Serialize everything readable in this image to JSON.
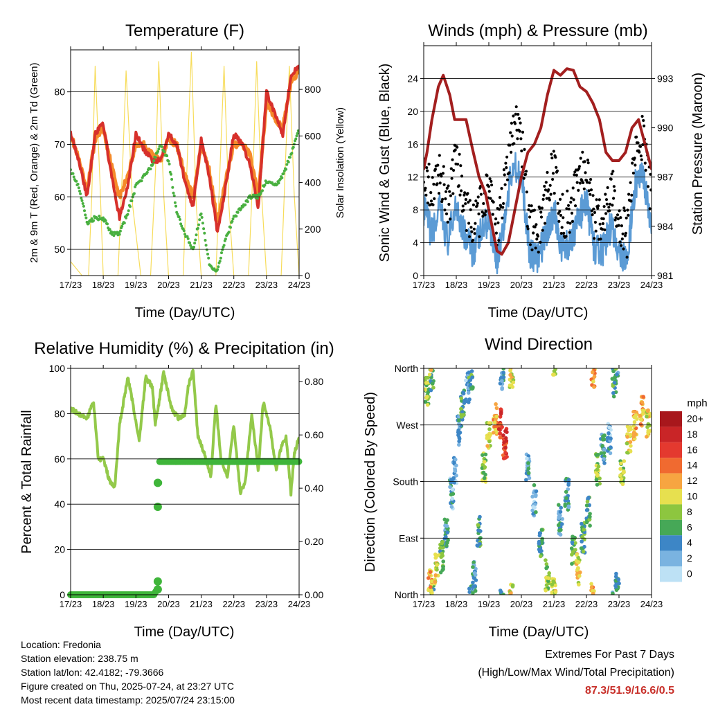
{
  "colors": {
    "temp_2m": "#d7302b",
    "temp_9m": "#f58a2a",
    "dewpoint": "#49b040",
    "insolation": "#f7dc5a",
    "wind": "#5b9bd5",
    "gust": "#000000",
    "pressure": "#a31f1f",
    "rh": "#93c94a",
    "precip": "#3fb53a",
    "grid": "#000000"
  },
  "x_ticks": [
    "17/23",
    "18/23",
    "19/23",
    "20/23",
    "21/23",
    "22/23",
    "23/23",
    "24/23"
  ],
  "info": {
    "location": "Location: Fredonia",
    "elevation": "Station elevation: 238.75 m",
    "latlon": "Station lat/lon: 42.4182; -79.3666",
    "created": "Figure created on Thu, 2025-07-24, at 23:27 UTC",
    "recent": "Most recent data timestamp: 2025/07/24 23:15:00"
  },
  "extremes": {
    "title": "Extremes For Past 7 Days",
    "subtitle": "(High/Low/Max Wind/Total Precipitation)",
    "values": "87.3/51.9/16.6/0.5"
  },
  "chart_data": [
    {
      "type": "line",
      "title": "Temperature (F)",
      "xlabel": "Time (Day/UTC)",
      "ylabel": "2m & 9m T (Red, Orange) & 2m Td (Green)",
      "y2label": "Solar Insolation (Yellow)",
      "xlim": [
        0,
        7
      ],
      "ylim": [
        45,
        88
      ],
      "y_ticks": [
        50,
        60,
        70,
        80
      ],
      "y2lim": [
        0,
        970
      ],
      "y2_ticks": [
        0,
        200,
        400,
        600,
        800
      ],
      "x": [
        0,
        0.25,
        0.5,
        0.75,
        1,
        1.25,
        1.5,
        1.75,
        2,
        2.25,
        2.5,
        2.75,
        3,
        3.25,
        3.5,
        3.75,
        4,
        4.25,
        4.5,
        4.75,
        5,
        5.25,
        5.5,
        5.75,
        6,
        6.25,
        6.5,
        6.75,
        7
      ],
      "series": [
        {
          "name": "2m T",
          "values": [
            72,
            67,
            60,
            72,
            74,
            64,
            56,
            62,
            72,
            69,
            67,
            67,
            72,
            70,
            63,
            58,
            71,
            64,
            53,
            62,
            72,
            70,
            66,
            58,
            80,
            76,
            72,
            83,
            85
          ]
        },
        {
          "name": "9m T",
          "values": [
            72,
            67,
            61,
            71,
            73,
            66,
            60,
            64,
            70,
            70,
            68,
            67,
            71,
            70,
            64,
            60,
            70,
            65,
            55,
            63,
            70,
            70,
            68,
            60,
            78,
            75,
            73,
            82,
            84
          ]
        },
        {
          "name": "2m Td",
          "values": [
            65,
            62,
            55,
            56,
            56,
            53,
            53,
            57,
            62,
            64,
            66,
            70,
            67,
            57,
            53,
            50,
            57,
            47,
            46,
            52,
            56,
            58,
            60,
            60,
            63,
            62,
            64,
            68,
            73
          ]
        },
        {
          "name": "Solar Insolation",
          "x": [
            0,
            0.35,
            0.55,
            0.65,
            0.75,
            0.9,
            1.0,
            1.2,
            1.45,
            1.6,
            1.7,
            1.9,
            2.15,
            2.45,
            2.6,
            2.7,
            2.85,
            3.0,
            3.2,
            3.45,
            3.6,
            3.7,
            3.85,
            4.0,
            4.2,
            4.45,
            4.6,
            4.7,
            4.85,
            5.0,
            5.2,
            5.45,
            5.6,
            5.7,
            5.85,
            6.0,
            6.2,
            6.45,
            6.6,
            6.7,
            6.85,
            7.0
          ],
          "values": [
            60,
            0,
            0,
            350,
            900,
            400,
            0,
            0,
            0,
            500,
            880,
            300,
            0,
            0,
            450,
            920,
            350,
            0,
            0,
            0,
            600,
            960,
            300,
            0,
            0,
            0,
            550,
            900,
            300,
            0,
            0,
            0,
            500,
            920,
            350,
            0,
            0,
            0,
            550,
            900,
            350,
            0
          ]
        }
      ]
    },
    {
      "type": "scatter",
      "title": "Winds (mph) & Pressure (mb)",
      "xlabel": "Time (Day/UTC)",
      "ylabel": "Sonic Wind & Gust (Blue, Black)",
      "y2label": "Station Pressure (Maroon)",
      "xlim": [
        0,
        7
      ],
      "ylim": [
        0,
        28
      ],
      "y_ticks": [
        0,
        4,
        8,
        12,
        16,
        20,
        24
      ],
      "y2lim": [
        981,
        995
      ],
      "y2_ticks": [
        981,
        984,
        987,
        990,
        993
      ],
      "series": [
        {
          "name": "Station Pressure",
          "x": [
            0,
            0.1,
            0.25,
            0.45,
            0.6,
            0.8,
            0.95,
            1.1,
            1.3,
            1.5,
            1.7,
            1.9,
            2.1,
            2.25,
            2.4,
            2.6,
            2.8,
            3.0,
            3.2,
            3.4,
            3.6,
            3.8,
            4.0,
            4.2,
            4.4,
            4.6,
            4.8,
            5.0,
            5.2,
            5.4,
            5.6,
            5.8,
            6.0,
            6.2,
            6.4,
            6.6,
            6.8,
            7.0
          ],
          "values": [
            987.5,
            988.5,
            990.5,
            992.5,
            993.2,
            992,
            990.5,
            990.5,
            990.5,
            988.7,
            987,
            986,
            984,
            982.5,
            982.3,
            983,
            985,
            987,
            988.5,
            989,
            990,
            992,
            993.5,
            993.2,
            993.6,
            993.5,
            992.5,
            992.2,
            991.5,
            990.5,
            988.5,
            988,
            988,
            988.5,
            990,
            990.5,
            989,
            987.5
          ]
        },
        {
          "name": "Sonic Wind",
          "x": [
            0,
            0.25,
            0.5,
            0.75,
            1,
            1.25,
            1.5,
            1.75,
            2,
            2.25,
            2.5,
            2.75,
            3,
            3.25,
            3.5,
            3.75,
            4,
            4.25,
            4.5,
            4.75,
            5,
            5.25,
            5.5,
            5.75,
            6,
            6.25,
            6.5,
            6.75,
            7
          ],
          "values": [
            8,
            5,
            8,
            4,
            9,
            5,
            3,
            5,
            7,
            2,
            7,
            14,
            12,
            3,
            2,
            5,
            8,
            3,
            4,
            7,
            9,
            3,
            3,
            6,
            3,
            2,
            11,
            12,
            5
          ]
        },
        {
          "name": "Gust",
          "x": [
            0,
            0.25,
            0.5,
            0.75,
            1,
            1.25,
            1.5,
            1.75,
            2,
            2.25,
            2.5,
            2.75,
            3,
            3.25,
            3.5,
            3.75,
            4,
            4.25,
            4.5,
            4.75,
            5,
            5.25,
            5.5,
            5.75,
            6,
            6.25,
            6.5,
            6.75,
            7
          ],
          "values": [
            14,
            9,
            13,
            8,
            14,
            9,
            6,
            8,
            12,
            5,
            11,
            19,
            17,
            6,
            5,
            9,
            13,
            7,
            8,
            12,
            14,
            7,
            6,
            11,
            7,
            5,
            16,
            17,
            9
          ]
        }
      ]
    },
    {
      "type": "line",
      "title": "Relative Humidity (%) & Precipitation (in)",
      "xlabel": "Time (Day/UTC)",
      "ylabel": "Percent & Total Rainfall",
      "xlim": [
        0,
        7
      ],
      "ylim": [
        0,
        100
      ],
      "y_ticks": [
        0,
        20,
        40,
        60,
        80,
        100
      ],
      "y2lim": [
        0,
        0.85
      ],
      "y2_ticks": [
        "0.00",
        "0.20",
        "0.40",
        "0.60",
        "0.80"
      ],
      "series": [
        {
          "name": "Relative Humidity",
          "x": [
            0,
            0.25,
            0.5,
            0.7,
            0.85,
            1.0,
            1.2,
            1.35,
            1.5,
            1.75,
            1.9,
            2.1,
            2.3,
            2.5,
            2.6,
            2.85,
            3.1,
            3.3,
            3.5,
            3.6,
            3.75,
            3.9,
            4.1,
            4.3,
            4.45,
            4.6,
            4.8,
            5.0,
            5.2,
            5.35,
            5.55,
            5.75,
            5.9,
            6.1,
            6.3,
            6.45,
            6.6,
            6.75,
            6.85,
            7.0
          ],
          "values": [
            82,
            80,
            78,
            85,
            60,
            60,
            50,
            47,
            75,
            96,
            85,
            68,
            96,
            92,
            75,
            98,
            82,
            78,
            80,
            92,
            99,
            70,
            62,
            52,
            85,
            60,
            52,
            75,
            45,
            50,
            80,
            55,
            85,
            75,
            55,
            65,
            70,
            45,
            62,
            70
          ]
        },
        {
          "name": "Total Rainfall",
          "x": [
            0,
            0.5,
            1.0,
            1.5,
            2.0,
            2.55,
            2.65,
            2.66,
            2.67,
            2.7,
            2.7,
            3.0,
            4.0,
            5.0,
            6.0,
            7.0
          ],
          "values": [
            0,
            0,
            0,
            0,
            0,
            0,
            0.02,
            0.05,
            0.33,
            0.42,
            0.5,
            0.5,
            0.5,
            0.5,
            0.5,
            0.5
          ]
        }
      ]
    },
    {
      "type": "scatter",
      "title": "Wind Direction",
      "xlabel": "Time (Day/UTC)",
      "ylabel": "Direction (Colored By Speed)",
      "xlim": [
        0,
        7
      ],
      "y_ticks": [
        "North",
        "East",
        "South",
        "West",
        "North"
      ],
      "ylim": [
        0,
        360
      ],
      "colorbar_title": "mph",
      "colorbar_labels": [
        "20+",
        "18",
        "16",
        "14",
        "12",
        "10",
        "8",
        "6",
        "4",
        "2",
        "0"
      ],
      "colorbar_colors": [
        "#a8171c",
        "#c92527",
        "#e4392f",
        "#f06a30",
        "#f7a541",
        "#e7e04f",
        "#8dc63f",
        "#46a857",
        "#3d86c6",
        "#7ab3e0",
        "#bde1f5"
      ],
      "clusters": [
        {
          "t": 0.1,
          "dir": 320,
          "speed": 8
        },
        {
          "t": 0.25,
          "dir": 350,
          "speed": 6
        },
        {
          "t": 0.2,
          "dir": 15,
          "speed": 12
        },
        {
          "t": 0.4,
          "dir": 40,
          "speed": 10
        },
        {
          "t": 0.55,
          "dir": 60,
          "speed": 6
        },
        {
          "t": 0.7,
          "dir": 100,
          "speed": 4
        },
        {
          "t": 0.85,
          "dir": 160,
          "speed": 3
        },
        {
          "t": 0.95,
          "dir": 200,
          "speed": 2
        },
        {
          "t": 1.1,
          "dir": 260,
          "speed": 4
        },
        {
          "t": 1.2,
          "dir": 300,
          "speed": 6
        },
        {
          "t": 1.35,
          "dir": 330,
          "speed": 3
        },
        {
          "t": 1.45,
          "dir": 350,
          "speed": 5
        },
        {
          "t": 1.55,
          "dir": 30,
          "speed": 4
        },
        {
          "t": 1.7,
          "dir": 100,
          "speed": 6
        },
        {
          "t": 1.85,
          "dir": 200,
          "speed": 8
        },
        {
          "t": 2.0,
          "dir": 250,
          "speed": 10
        },
        {
          "t": 2.2,
          "dir": 280,
          "speed": 12
        },
        {
          "t": 2.35,
          "dir": 270,
          "speed": 16
        },
        {
          "t": 2.5,
          "dir": 240,
          "speed": 16
        },
        {
          "t": 2.4,
          "dir": 350,
          "speed": 4
        },
        {
          "t": 2.7,
          "dir": 355,
          "speed": 10
        },
        {
          "t": 3.2,
          "dir": 200,
          "speed": 3
        },
        {
          "t": 3.4,
          "dir": 150,
          "speed": 3
        },
        {
          "t": 3.6,
          "dir": 80,
          "speed": 5
        },
        {
          "t": 3.8,
          "dir": 30,
          "speed": 8
        },
        {
          "t": 4.0,
          "dir": 10,
          "speed": 10
        },
        {
          "t": 4.2,
          "dir": 120,
          "speed": 4
        },
        {
          "t": 4.4,
          "dir": 160,
          "speed": 4
        },
        {
          "t": 4.6,
          "dir": 70,
          "speed": 6
        },
        {
          "t": 4.75,
          "dir": 40,
          "speed": 10
        },
        {
          "t": 4.9,
          "dir": 90,
          "speed": 6
        },
        {
          "t": 5.05,
          "dir": 130,
          "speed": 5
        },
        {
          "t": 5.2,
          "dir": 355,
          "speed": 12
        },
        {
          "t": 5.35,
          "dir": 200,
          "speed": 8
        },
        {
          "t": 5.5,
          "dir": 230,
          "speed": 4
        },
        {
          "t": 5.7,
          "dir": 250,
          "speed": 3
        },
        {
          "t": 5.85,
          "dir": 340,
          "speed": 5
        },
        {
          "t": 5.95,
          "dir": 10,
          "speed": 5
        },
        {
          "t": 6.1,
          "dir": 200,
          "speed": 8
        },
        {
          "t": 6.3,
          "dir": 250,
          "speed": 10
        },
        {
          "t": 6.5,
          "dir": 270,
          "speed": 12
        },
        {
          "t": 6.7,
          "dir": 290,
          "speed": 12
        },
        {
          "t": 6.9,
          "dir": 270,
          "speed": 10
        }
      ]
    }
  ]
}
